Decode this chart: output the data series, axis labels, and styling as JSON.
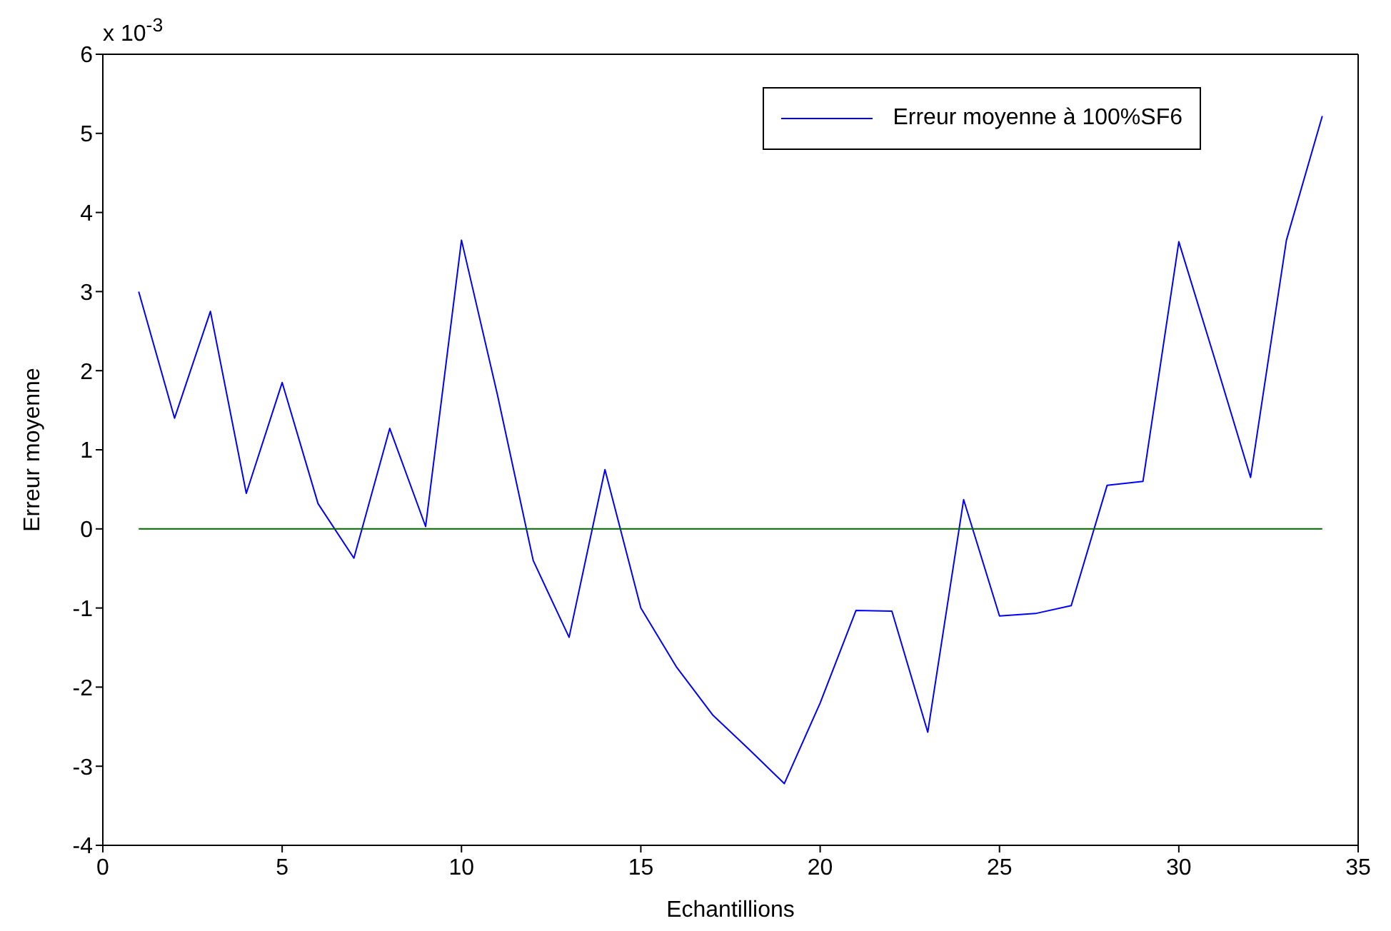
{
  "chart_data": {
    "type": "line",
    "xlabel": "Echantillions",
    "ylabel": "Erreur  moyenne",
    "annotations": [
      "x 10$^{-3}$"
    ],
    "xlim": [
      0,
      35
    ],
    "xticks": [
      0,
      5,
      10,
      15,
      20,
      25,
      30,
      35
    ],
    "ylim": [
      -4,
      6
    ],
    "yticks": [
      -4,
      -3,
      -2,
      -1,
      0,
      1,
      2,
      3,
      4,
      5,
      6
    ],
    "legend": "top right",
    "series": [
      {
        "name": "Erreur  moyenne à 100%SF6",
        "color": "#0000ff",
        "x": [
          1,
          2,
          3,
          4,
          5,
          6,
          7,
          8,
          9,
          10,
          11,
          12,
          13,
          14,
          15,
          16,
          17,
          18,
          19,
          20,
          21,
          22,
          23,
          24,
          25,
          26,
          27,
          28,
          29,
          30,
          31,
          32,
          33,
          34
        ],
        "values": [
          3.0,
          1.4,
          2.75,
          0.45,
          1.85,
          0.32,
          -0.37,
          1.27,
          0.03,
          3.65,
          1.7,
          -0.4,
          -1.37,
          0.75,
          -1.0,
          -1.75,
          -2.35,
          -2.78,
          -3.22,
          -2.2,
          -1.03,
          -1.04,
          -2.57,
          0.37,
          -1.1,
          -1.07,
          -0.97,
          0.55,
          0.6,
          3.63,
          2.15,
          0.65,
          3.65,
          5.22
        ]
      },
      {
        "color": "#006400",
        "x": [
          1,
          34
        ],
        "values": [
          0,
          0
        ]
      }
    ]
  }
}
